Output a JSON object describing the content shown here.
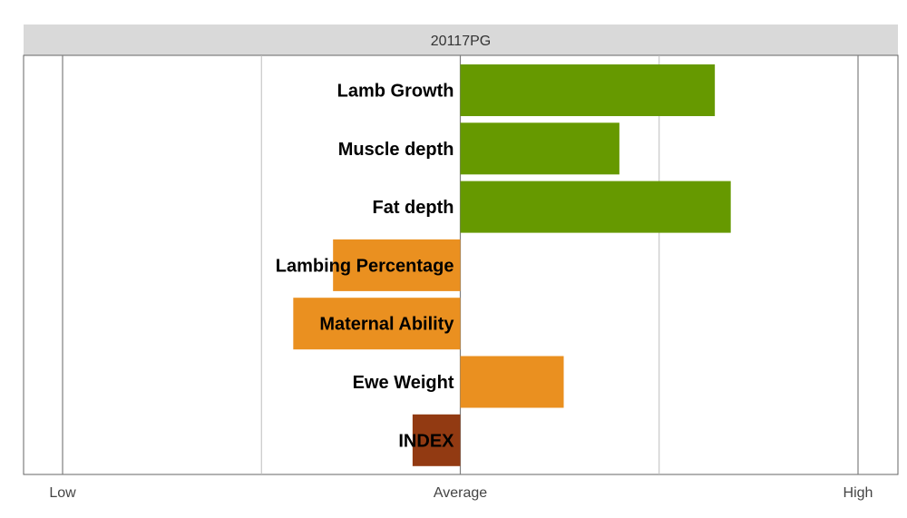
{
  "chart_data": {
    "type": "bar",
    "orientation": "horizontal",
    "title": "20117PG",
    "categories": [
      "Lamb Growth",
      "Muscle depth",
      "Fat depth",
      "Lambing Percentage",
      "Maternal Ability",
      "Ewe Weight",
      "INDEX"
    ],
    "values": [
      0.64,
      0.4,
      0.68,
      -0.32,
      -0.42,
      0.26,
      -0.12
    ],
    "colors": [
      "#669900",
      "#669900",
      "#669900",
      "#EA9020",
      "#EA9020",
      "#EA9020",
      "#923A12"
    ],
    "xlim": [
      -1,
      1
    ],
    "x_ticks": [
      {
        "value": -1,
        "label": "Low"
      },
      {
        "value": 0,
        "label": "Average"
      },
      {
        "value": 1,
        "label": "High"
      }
    ],
    "grid_values": [
      -0.5,
      0.5
    ],
    "grid": true,
    "legend": false
  }
}
